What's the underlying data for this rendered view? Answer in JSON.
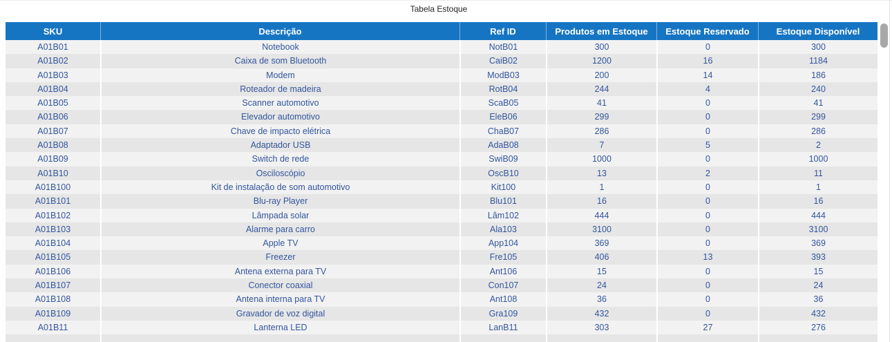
{
  "visual": {
    "title": "Tabela Estoque"
  },
  "colors": {
    "header_bg": "#1675c3",
    "header_text": "#ffffff",
    "cell_text": "#33559d",
    "row_odd_bg": "#f2f2f2",
    "row_even_bg": "#e6e6e6",
    "scroll_thumb": "#a8a8a8"
  },
  "table": {
    "columns": [
      {
        "key": "sku",
        "label": "SKU"
      },
      {
        "key": "descricao",
        "label": "Descrição"
      },
      {
        "key": "ref-id",
        "label": "Ref ID"
      },
      {
        "key": "produtos-em-estoque",
        "label": "Produtos em Estoque"
      },
      {
        "key": "estoque-reservado",
        "label": "Estoque Reservado"
      },
      {
        "key": "estoque-disponivel",
        "label": "Estoque Disponível"
      }
    ],
    "rows": [
      [
        "A01B01",
        "Notebook",
        "NotB01",
        "300",
        "0",
        "300"
      ],
      [
        "A01B02",
        "Caixa de som Bluetooth",
        "CaiB02",
        "1200",
        "16",
        "1184"
      ],
      [
        "A01B03",
        "Modem",
        "ModB03",
        "200",
        "14",
        "186"
      ],
      [
        "A01B04",
        "Roteador de madeira",
        "RotB04",
        "244",
        "4",
        "240"
      ],
      [
        "A01B05",
        "Scanner automotivo",
        "ScaB05",
        "41",
        "0",
        "41"
      ],
      [
        "A01B06",
        "Elevador automotivo",
        "EleB06",
        "299",
        "0",
        "299"
      ],
      [
        "A01B07",
        "Chave de impacto elétrica",
        "ChaB07",
        "286",
        "0",
        "286"
      ],
      [
        "A01B08",
        "Adaptador USB",
        "AdaB08",
        "7",
        "5",
        "2"
      ],
      [
        "A01B09",
        "Switch de rede",
        "SwiB09",
        "1000",
        "0",
        "1000"
      ],
      [
        "A01B10",
        "Osciloscópio",
        "OscB10",
        "13",
        "2",
        "11"
      ],
      [
        "A01B100",
        "Kit de instalação de som automotivo",
        "Kit100",
        "1",
        "0",
        "1"
      ],
      [
        "A01B101",
        "Blu-ray Player",
        "Blu101",
        "16",
        "0",
        "16"
      ],
      [
        "A01B102",
        "Lâmpada solar",
        "Lâm102",
        "444",
        "0",
        "444"
      ],
      [
        "A01B103",
        "Alarme para carro",
        "Ala103",
        "3100",
        "0",
        "3100"
      ],
      [
        "A01B104",
        "Apple TV",
        "App104",
        "369",
        "0",
        "369"
      ],
      [
        "A01B105",
        "Freezer",
        "Fre105",
        "406",
        "13",
        "393"
      ],
      [
        "A01B106",
        "Antena externa para TV",
        "Ant106",
        "15",
        "0",
        "15"
      ],
      [
        "A01B107",
        "Conector coaxial",
        "Con107",
        "24",
        "0",
        "24"
      ],
      [
        "A01B108",
        "Antena interna para TV",
        "Ant108",
        "36",
        "0",
        "36"
      ],
      [
        "A01B109",
        "Gravador de voz digital",
        "Gra109",
        "432",
        "0",
        "432"
      ],
      [
        "A01B11",
        "Lanterna LED",
        "LanB11",
        "303",
        "27",
        "276"
      ]
    ]
  },
  "chart_data": {
    "type": "table",
    "title": "Tabela Estoque",
    "columns": [
      "SKU",
      "Descrição",
      "Ref ID",
      "Produtos em Estoque",
      "Estoque Reservado",
      "Estoque Disponível"
    ],
    "rows": [
      [
        "A01B01",
        "Notebook",
        "NotB01",
        300,
        0,
        300
      ],
      [
        "A01B02",
        "Caixa de som Bluetooth",
        "CaiB02",
        1200,
        16,
        1184
      ],
      [
        "A01B03",
        "Modem",
        "ModB03",
        200,
        14,
        186
      ],
      [
        "A01B04",
        "Roteador de madeira",
        "RotB04",
        244,
        4,
        240
      ],
      [
        "A01B05",
        "Scanner automotivo",
        "ScaB05",
        41,
        0,
        41
      ],
      [
        "A01B06",
        "Elevador automotivo",
        "EleB06",
        299,
        0,
        299
      ],
      [
        "A01B07",
        "Chave de impacto elétrica",
        "ChaB07",
        286,
        0,
        286
      ],
      [
        "A01B08",
        "Adaptador USB",
        "AdaB08",
        7,
        5,
        2
      ],
      [
        "A01B09",
        "Switch de rede",
        "SwiB09",
        1000,
        0,
        1000
      ],
      [
        "A01B10",
        "Osciloscópio",
        "OscB10",
        13,
        2,
        11
      ],
      [
        "A01B100",
        "Kit de instalação de som automotivo",
        "Kit100",
        1,
        0,
        1
      ],
      [
        "A01B101",
        "Blu-ray Player",
        "Blu101",
        16,
        0,
        16
      ],
      [
        "A01B102",
        "Lâmpada solar",
        "Lâm102",
        444,
        0,
        444
      ],
      [
        "A01B103",
        "Alarme para carro",
        "Ala103",
        3100,
        0,
        3100
      ],
      [
        "A01B104",
        "Apple TV",
        "App104",
        369,
        0,
        369
      ],
      [
        "A01B105",
        "Freezer",
        "Fre105",
        406,
        13,
        393
      ],
      [
        "A01B106",
        "Antena externa para TV",
        "Ant106",
        15,
        0,
        15
      ],
      [
        "A01B107",
        "Conector coaxial",
        "Con107",
        24,
        0,
        24
      ],
      [
        "A01B108",
        "Antena interna para TV",
        "Ant108",
        36,
        0,
        36
      ],
      [
        "A01B109",
        "Gravador de voz digital",
        "Gra109",
        432,
        0,
        432
      ],
      [
        "A01B11",
        "Lanterna LED",
        "LanB11",
        303,
        27,
        276
      ]
    ]
  }
}
